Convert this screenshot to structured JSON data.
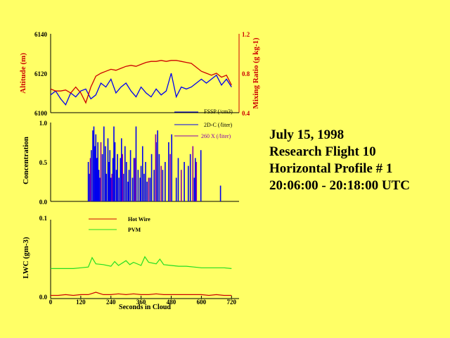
{
  "info": {
    "lines": [
      "July 15, 1998",
      "Research Flight 10",
      "Horizontal Profile # 1",
      "20:06:00 - 20:18:00 UTC"
    ]
  },
  "colors": {
    "background": "#ffff66",
    "blue": "#0000ee",
    "red": "#cc0000",
    "purple": "#8800aa",
    "green": "#22dd22",
    "axis": "#000000"
  },
  "chart_data": [
    {
      "type": "line",
      "ylabel": "Altitude (m)",
      "y2label": "Mixing Ratio (g kg-1)",
      "ylim": [
        6100,
        6140
      ],
      "y2lim": [
        0.4,
        1.2
      ],
      "ytick_labels": [
        "6140",
        "6120",
        "6100"
      ],
      "y2tick_labels": [
        "1.2",
        "0.8",
        "0.4"
      ],
      "series": [
        {
          "role": "altitude",
          "axis": "left",
          "color": "blue",
          "x": [
            0,
            20,
            40,
            60,
            80,
            100,
            120,
            140,
            160,
            180,
            200,
            220,
            240,
            260,
            280,
            300,
            320,
            340,
            360,
            380,
            400,
            420,
            440,
            460,
            480,
            500,
            520,
            540,
            560,
            580,
            600,
            620,
            640,
            660,
            680,
            700,
            720
          ],
          "values": [
            6109,
            6111,
            6107,
            6104,
            6110,
            6108,
            6111,
            6112,
            6107,
            6109,
            6115,
            6113,
            6117,
            6110,
            6113,
            6115,
            6111,
            6108,
            6113,
            6110,
            6108,
            6112,
            6109,
            6111,
            6120,
            6108,
            6113,
            6112,
            6113,
            6115,
            6117,
            6115,
            6117,
            6119,
            6114,
            6117,
            6113
          ]
        },
        {
          "role": "mixing_ratio",
          "axis": "right",
          "color": "red",
          "x": [
            0,
            20,
            40,
            60,
            80,
            100,
            120,
            140,
            160,
            180,
            200,
            220,
            240,
            260,
            280,
            300,
            320,
            340,
            360,
            380,
            400,
            420,
            440,
            460,
            480,
            500,
            520,
            540,
            560,
            580,
            600,
            620,
            640,
            660,
            680,
            700,
            720
          ],
          "values": [
            0.64,
            0.62,
            0.62,
            0.63,
            0.6,
            0.66,
            0.6,
            0.5,
            0.66,
            0.77,
            0.8,
            0.82,
            0.84,
            0.83,
            0.85,
            0.87,
            0.88,
            0.87,
            0.89,
            0.91,
            0.92,
            0.92,
            0.93,
            0.92,
            0.93,
            0.93,
            0.92,
            0.91,
            0.9,
            0.86,
            0.82,
            0.8,
            0.78,
            0.8,
            0.76,
            0.78,
            0.68
          ]
        }
      ]
    },
    {
      "type": "bar",
      "ylabel": "Concentration",
      "ylim": [
        0,
        1
      ],
      "ytick_labels": [
        "1.0",
        "0.5",
        "0.0"
      ],
      "legend": [
        {
          "label": "FSSP (/cm3)",
          "color": "blue"
        },
        {
          "label": "2D-C (/liter)",
          "color": "blue"
        },
        {
          "label": "260 X (/liter)",
          "color": "purple"
        }
      ],
      "series": [
        {
          "color": "blue",
          "x": [
            150,
            155,
            162,
            168,
            172,
            176,
            180,
            184,
            188,
            192,
            196,
            206,
            212,
            218,
            222,
            228,
            232,
            236,
            240,
            248,
            252,
            256,
            262,
            266,
            272,
            278,
            282,
            290,
            296,
            302,
            308,
            312,
            318,
            326,
            332,
            340,
            348,
            356,
            360,
            366,
            372,
            378,
            384,
            396,
            402,
            412,
            420,
            426,
            432,
            446,
            456,
            470,
            482,
            500,
            508,
            532,
            548,
            556,
            572,
            576,
            598,
            676
          ],
          "values": [
            0.5,
            0.35,
            0.65,
            0.9,
            0.95,
            0.7,
            0.85,
            0.55,
            0.75,
            0.4,
            0.3,
            0.6,
            0.95,
            0.7,
            0.35,
            0.8,
            0.5,
            0.65,
            0.3,
            0.55,
            0.95,
            0.75,
            0.4,
            0.6,
            0.3,
            0.55,
            0.8,
            0.35,
            0.7,
            0.5,
            0.25,
            0.4,
            0.65,
            0.3,
            0.55,
            0.95,
            0.4,
            0.3,
            0.45,
            0.7,
            0.35,
            0.5,
            0.25,
            0.3,
            0.6,
            0.4,
            0.75,
            0.9,
            0.6,
            0.4,
            0.5,
            0.75,
            0.85,
            0.3,
            0.55,
            0.5,
            0.45,
            0.6,
            0.3,
            0.55,
            0.65,
            0.2
          ]
        },
        {
          "color": "purple",
          "x": [
            158,
            200,
            244,
            286,
            336,
            390,
            418,
            440,
            476,
            520,
            566,
            580
          ],
          "values": [
            0.55,
            0.75,
            0.35,
            0.6,
            0.55,
            0.3,
            0.85,
            0.45,
            0.6,
            0.4,
            0.7,
            0.5
          ]
        }
      ]
    },
    {
      "type": "line",
      "title": "",
      "xlabel": "Seconds in Cloud",
      "ylabel": "LWC (gm-3)",
      "xlim": [
        0,
        750
      ],
      "ylim": [
        0,
        0.1
      ],
      "xtick_labels": [
        "0",
        "120",
        "240",
        "360",
        "480",
        "600",
        "720"
      ],
      "ytick_labels": [
        "0.1",
        "0.0"
      ],
      "legend": [
        {
          "label": "Hot Wire",
          "color": "red"
        },
        {
          "label": "PVM",
          "color": "green"
        }
      ],
      "series": [
        {
          "name": "Hot Wire",
          "color": "red",
          "x": [
            0,
            30,
            60,
            90,
            120,
            150,
            180,
            210,
            240,
            270,
            300,
            330,
            360,
            390,
            420,
            450,
            480,
            510,
            540,
            570,
            600,
            630,
            660,
            690,
            720
          ],
          "values": [
            0.004,
            0.004,
            0.005,
            0.004,
            0.005,
            0.005,
            0.008,
            0.005,
            0.005,
            0.006,
            0.005,
            0.006,
            0.005,
            0.005,
            0.006,
            0.005,
            0.005,
            0.005,
            0.005,
            0.005,
            0.005,
            0.004,
            0.005,
            0.004,
            0.004
          ]
        },
        {
          "name": "PVM",
          "color": "green",
          "x": [
            0,
            30,
            60,
            90,
            120,
            150,
            165,
            180,
            210,
            240,
            255,
            270,
            300,
            315,
            330,
            360,
            375,
            390,
            420,
            435,
            450,
            480,
            510,
            540,
            570,
            600,
            630,
            660,
            690,
            720
          ],
          "values": [
            0.038,
            0.038,
            0.038,
            0.038,
            0.039,
            0.04,
            0.052,
            0.044,
            0.043,
            0.041,
            0.047,
            0.042,
            0.048,
            0.043,
            0.046,
            0.042,
            0.053,
            0.046,
            0.044,
            0.05,
            0.043,
            0.042,
            0.041,
            0.041,
            0.04,
            0.039,
            0.039,
            0.039,
            0.039,
            0.038
          ]
        }
      ]
    }
  ]
}
